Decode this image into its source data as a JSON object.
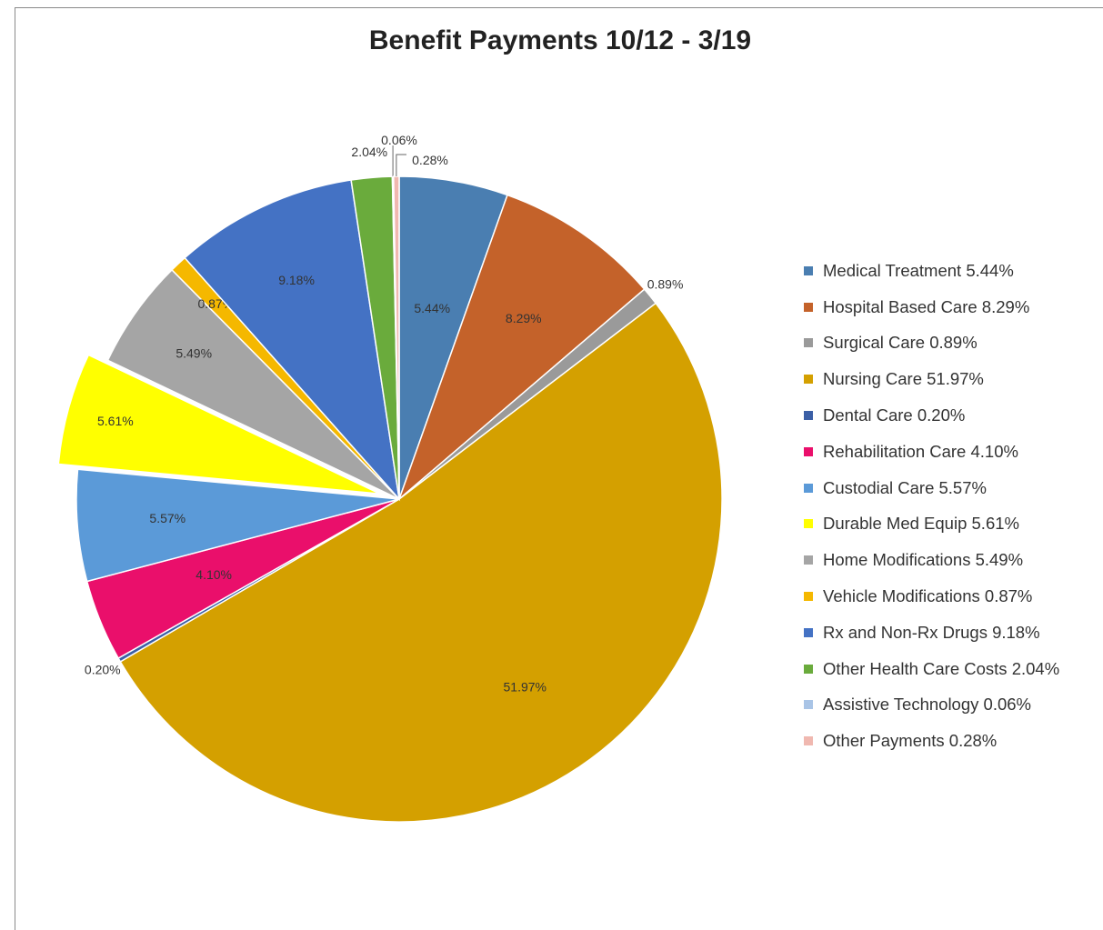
{
  "chart_data": {
    "type": "pie",
    "title": "Benefit Payments 10/12 - 3/19",
    "legend_position": "right",
    "start_angle_deg": 0,
    "direction": "clockwise",
    "slices": [
      {
        "label": "Medical Treatment",
        "value": 5.44,
        "display": "5.44%",
        "color": "#4a7eb1"
      },
      {
        "label": "Hospital Based Care",
        "value": 8.29,
        "display": "8.29%",
        "color": "#c4622a"
      },
      {
        "label": "Surgical Care",
        "value": 0.89,
        "display": "0.89%",
        "color": "#9a9a9a"
      },
      {
        "label": "Nursing Care",
        "value": 51.97,
        "display": "51.97%",
        "color": "#d4a000"
      },
      {
        "label": "Dental Care",
        "value": 0.2,
        "display": "0.20%",
        "color": "#3b5fa6"
      },
      {
        "label": "Rehabilitation Care",
        "value": 4.1,
        "display": "4.10%",
        "color": "#ea0f6b"
      },
      {
        "label": "Custodial Care",
        "value": 5.57,
        "display": "5.57%",
        "color": "#5b9ad8"
      },
      {
        "label": "Durable Med Equip",
        "value": 5.61,
        "display": "5.61%",
        "color": "#ffff00",
        "exploded": true
      },
      {
        "label": "Home Modifications",
        "value": 5.49,
        "display": "5.49%",
        "color": "#a5a5a5"
      },
      {
        "label": "Vehicle Modifications",
        "value": 0.87,
        "display": "0.87%",
        "color": "#f5b800"
      },
      {
        "label": "Rx and Non-Rx Drugs",
        "value": 9.18,
        "display": "9.18%",
        "color": "#4472c4"
      },
      {
        "label": "Other Health Care Costs",
        "value": 2.04,
        "display": "2.04%",
        "color": "#6aab3c"
      },
      {
        "label": "Assistive Technology",
        "value": 0.06,
        "display": "0.06%",
        "color": "#a9c4e6"
      },
      {
        "label": "Other Payments",
        "value": 0.28,
        "display": "0.28%",
        "color": "#f0b8b0"
      }
    ]
  }
}
